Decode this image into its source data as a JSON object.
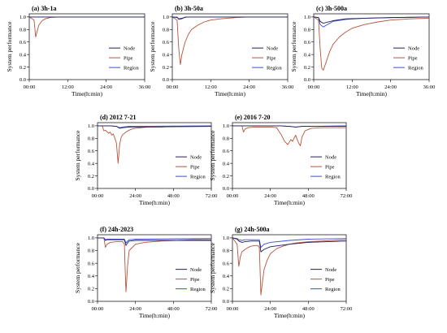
{
  "chart_data": [
    {
      "type": "line",
      "title": "(a) 3h-1a",
      "xlabel": "Time(h:min)",
      "ylabel": "System performance",
      "xlim": [
        0,
        36
      ],
      "ylim": [
        0,
        1.05
      ],
      "xticks": [
        "00:00",
        "12:00",
        "24:00",
        "36:00"
      ],
      "yticks": [
        "0.0",
        "0.2",
        "0.4",
        "0.6",
        "0.8",
        "1.0"
      ],
      "legend_position": "right",
      "series": [
        {
          "name": "Node",
          "color": "#1f1f5a",
          "x": [
            0,
            36
          ],
          "y": [
            1.0,
            1.0
          ]
        },
        {
          "name": "Pipe",
          "color": "#b5543a",
          "x": [
            0,
            1.5,
            2.0,
            2.5,
            3.0,
            4.0,
            5.0,
            6.5,
            9.0,
            12.0,
            36.0
          ],
          "y": [
            1.0,
            0.95,
            0.68,
            0.78,
            0.87,
            0.94,
            0.97,
            0.99,
            1.0,
            1.0,
            1.0
          ]
        },
        {
          "name": "Region",
          "color": "#3a4fd4",
          "x": [
            0,
            36
          ],
          "y": [
            1.0,
            1.0
          ]
        }
      ]
    },
    {
      "type": "line",
      "title": "(b) 3h-50a",
      "xlabel": "Time(h:min)",
      "ylabel": "System performance",
      "xlim": [
        0,
        36
      ],
      "ylim": [
        0,
        1.05
      ],
      "xticks": [
        "00:00",
        "12:00",
        "24:00",
        "36:00"
      ],
      "yticks": [
        "0.0",
        "0.2",
        "0.4",
        "0.6",
        "0.8",
        "1.0"
      ],
      "legend_position": "right",
      "series": [
        {
          "name": "Node",
          "color": "#1f1f5a",
          "x": [
            0,
            1.5,
            2.0,
            3.0,
            4.5,
            36
          ],
          "y": [
            1.0,
            0.99,
            0.97,
            0.98,
            1.0,
            1.0
          ]
        },
        {
          "name": "Pipe",
          "color": "#b5543a",
          "x": [
            0,
            1.5,
            2.0,
            2.5,
            3.0,
            4.0,
            5.0,
            6.0,
            8.0,
            10.0,
            12.0,
            15.0,
            20.0,
            24.0,
            36.0
          ],
          "y": [
            1.0,
            0.95,
            0.5,
            0.24,
            0.4,
            0.6,
            0.72,
            0.8,
            0.87,
            0.92,
            0.95,
            0.97,
            0.99,
            1.0,
            1.0
          ]
        },
        {
          "name": "Region",
          "color": "#3a4fd4",
          "x": [
            0,
            1.5,
            2.0,
            3.0,
            4.0,
            36
          ],
          "y": [
            1.0,
            1.0,
            0.96,
            0.97,
            1.0,
            1.0
          ]
        }
      ]
    },
    {
      "type": "line",
      "title": "(c) 3h-500a",
      "xlabel": "Time(h:min)",
      "ylabel": "System performance",
      "xlim": [
        0,
        36
      ],
      "ylim": [
        0,
        1.05
      ],
      "xticks": [
        "00:00",
        "12:00",
        "24:00",
        "36:00"
      ],
      "yticks": [
        "0.0",
        "0.2",
        "0.4",
        "0.6",
        "0.8",
        "1.0"
      ],
      "legend_position": "right",
      "series": [
        {
          "name": "Node",
          "color": "#1f1f5a",
          "x": [
            0,
            1.5,
            2.0,
            3.0,
            6.0,
            10.0,
            16.0,
            24.0,
            36.0
          ],
          "y": [
            1.0,
            0.99,
            0.93,
            0.9,
            0.94,
            0.97,
            0.98,
            0.99,
            1.0
          ]
        },
        {
          "name": "Pipe",
          "color": "#b5543a",
          "x": [
            0,
            1.5,
            2.0,
            2.5,
            3.0,
            4.0,
            5.0,
            6.0,
            8.0,
            10.0,
            12.0,
            16.0,
            20.0,
            24.0,
            30.0,
            36.0
          ],
          "y": [
            1.0,
            0.95,
            0.5,
            0.18,
            0.15,
            0.3,
            0.45,
            0.56,
            0.68,
            0.76,
            0.82,
            0.88,
            0.92,
            0.95,
            0.97,
            0.98
          ]
        },
        {
          "name": "Region",
          "color": "#3a4fd4",
          "x": [
            0,
            1.5,
            2.0,
            3.0,
            4.0,
            6.0,
            10.0,
            16.0,
            36.0
          ],
          "y": [
            1.0,
            0.99,
            0.88,
            0.84,
            0.87,
            0.93,
            0.96,
            0.98,
            1.0
          ]
        }
      ]
    },
    {
      "type": "line",
      "title": "(d) 2012 7-21",
      "xlabel": "Time(h:min)",
      "ylabel": "System performance",
      "xlim": [
        0,
        72
      ],
      "ylim": [
        0,
        1.05
      ],
      "xticks": [
        "00:00",
        "24:00",
        "48:00",
        "72:00"
      ],
      "yticks": [
        "0.0",
        "0.2",
        "0.4",
        "0.6",
        "0.8",
        "1.0"
      ],
      "legend_position": "right",
      "series": [
        {
          "name": "Node",
          "color": "#1f1f5a",
          "x": [
            0,
            8,
            12,
            14,
            16,
            20,
            72
          ],
          "y": [
            1.0,
            1.0,
            0.99,
            0.96,
            0.97,
            0.98,
            0.99
          ]
        },
        {
          "name": "Pipe",
          "color": "#b5543a",
          "x": [
            0,
            3,
            4,
            5,
            7,
            8,
            9,
            10,
            11,
            12,
            13,
            14,
            15,
            16,
            18,
            20,
            22,
            24,
            28,
            32,
            40,
            48,
            72
          ],
          "y": [
            1.0,
            1.0,
            0.92,
            0.93,
            0.88,
            0.9,
            0.85,
            0.87,
            0.8,
            0.72,
            0.4,
            0.7,
            0.82,
            0.86,
            0.9,
            0.93,
            0.95,
            0.96,
            0.97,
            0.98,
            0.98,
            0.99,
            0.99
          ]
        },
        {
          "name": "Region",
          "color": "#3a4fd4",
          "x": [
            0,
            8,
            12,
            14,
            16,
            20,
            72
          ],
          "y": [
            1.0,
            1.0,
            0.99,
            0.97,
            0.98,
            0.99,
            1.0
          ]
        }
      ]
    },
    {
      "type": "line",
      "title": "(e) 2016 7-20",
      "xlabel": "Time(h:min)",
      "ylabel": "System performance",
      "xlim": [
        0,
        72
      ],
      "ylim": [
        0,
        1.05
      ],
      "xticks": [
        "00:00",
        "24:00",
        "48:00",
        "72:00"
      ],
      "yticks": [
        "0.0",
        "0.2",
        "0.4",
        "0.6",
        "0.8",
        "1.0"
      ],
      "legend_position": "right",
      "series": [
        {
          "name": "Node",
          "color": "#1f1f5a",
          "x": [
            0,
            30,
            36,
            40,
            44,
            50,
            72
          ],
          "y": [
            1.0,
            1.0,
            0.99,
            0.98,
            0.99,
            0.99,
            0.99
          ]
        },
        {
          "name": "Pipe",
          "color": "#b5543a",
          "x": [
            0,
            6,
            7,
            8,
            10,
            14,
            20,
            24,
            28,
            31,
            33,
            35,
            37,
            38,
            40,
            41,
            42,
            43,
            44,
            46,
            50,
            56,
            64,
            72
          ],
          "y": [
            1.0,
            1.0,
            0.9,
            0.95,
            0.97,
            0.98,
            0.98,
            0.98,
            0.97,
            0.85,
            0.75,
            0.7,
            0.78,
            0.75,
            0.85,
            0.78,
            0.72,
            0.68,
            0.82,
            0.92,
            0.96,
            0.97,
            0.97,
            0.97
          ]
        },
        {
          "name": "Region",
          "color": "#3a4fd4",
          "x": [
            0,
            30,
            36,
            40,
            44,
            50,
            72
          ],
          "y": [
            1.0,
            1.0,
            0.99,
            0.98,
            0.99,
            0.99,
            1.0
          ]
        }
      ]
    },
    {
      "type": "line",
      "title": "(f) 24h-2023",
      "xlabel": "Time(h:min)",
      "ylabel": "System performance",
      "xlim": [
        0,
        72
      ],
      "ylim": [
        0,
        1.05
      ],
      "xticks": [
        "00:00",
        "24:00",
        "48:00",
        "72:00"
      ],
      "yticks": [
        "0.0",
        "0.2",
        "0.4",
        "0.6",
        "0.8",
        "1.0"
      ],
      "legend_position": "right",
      "series": [
        {
          "name": "Node",
          "color": "#1f1f5a",
          "x": [
            0,
            4,
            5,
            6,
            8,
            17,
            18,
            19,
            20,
            24,
            72
          ],
          "y": [
            1.0,
            1.0,
            0.96,
            0.97,
            0.97,
            0.97,
            0.88,
            0.92,
            0.95,
            0.96,
            0.96
          ]
        },
        {
          "name": "Pipe",
          "color": "#b5543a",
          "x": [
            0,
            4,
            5,
            6,
            8,
            12,
            16,
            17,
            17.5,
            18,
            19,
            20,
            24,
            30,
            40,
            50,
            60,
            72
          ],
          "y": [
            1.0,
            1.0,
            0.85,
            0.9,
            0.93,
            0.94,
            0.94,
            0.9,
            0.5,
            0.15,
            0.55,
            0.8,
            0.9,
            0.93,
            0.95,
            0.96,
            0.97,
            0.97
          ]
        },
        {
          "name": "Region",
          "color": "#3a4fd4",
          "x": [
            0,
            4,
            5,
            6,
            8,
            17,
            18,
            19,
            20,
            24,
            72
          ],
          "y": [
            1.0,
            1.0,
            0.97,
            0.98,
            0.98,
            0.98,
            0.92,
            0.95,
            0.97,
            0.98,
            0.99
          ]
        }
      ]
    },
    {
      "type": "line",
      "title": "(g) 24h-500a",
      "xlabel": "Time(h:min)",
      "ylabel": "System performance",
      "xlim": [
        0,
        72
      ],
      "ylim": [
        0,
        1.05
      ],
      "xticks": [
        "00:00",
        "24:00",
        "48:00",
        "72:00"
      ],
      "yticks": [
        "0.0",
        "0.2",
        "0.4",
        "0.6",
        "0.8",
        "1.0"
      ],
      "legend_position": "right",
      "series": [
        {
          "name": "Node",
          "color": "#1f1f5a",
          "x": [
            0,
            3,
            4,
            6,
            8,
            12,
            17,
            18,
            20,
            24,
            36,
            48,
            72
          ],
          "y": [
            1.0,
            0.98,
            0.95,
            0.93,
            0.94,
            0.95,
            0.95,
            0.78,
            0.82,
            0.86,
            0.9,
            0.93,
            0.95
          ]
        },
        {
          "name": "Pipe",
          "color": "#b5543a",
          "x": [
            0,
            3,
            4,
            5,
            6,
            8,
            10,
            12,
            14,
            16,
            17,
            17.5,
            18,
            19,
            20,
            22,
            24,
            28,
            32,
            36,
            40,
            48,
            56,
            64,
            72
          ],
          "y": [
            1.0,
            0.9,
            0.55,
            0.7,
            0.78,
            0.82,
            0.85,
            0.87,
            0.88,
            0.88,
            0.85,
            0.5,
            0.1,
            0.3,
            0.5,
            0.65,
            0.75,
            0.83,
            0.87,
            0.9,
            0.92,
            0.94,
            0.95,
            0.96,
            0.97
          ]
        },
        {
          "name": "Region",
          "color": "#3a4fd4",
          "x": [
            0,
            3,
            4,
            6,
            8,
            12,
            17,
            18,
            20,
            24,
            36,
            48,
            72
          ],
          "y": [
            1.0,
            0.99,
            0.97,
            0.96,
            0.97,
            0.97,
            0.97,
            0.85,
            0.9,
            0.93,
            0.96,
            0.98,
            0.99
          ]
        }
      ]
    }
  ]
}
